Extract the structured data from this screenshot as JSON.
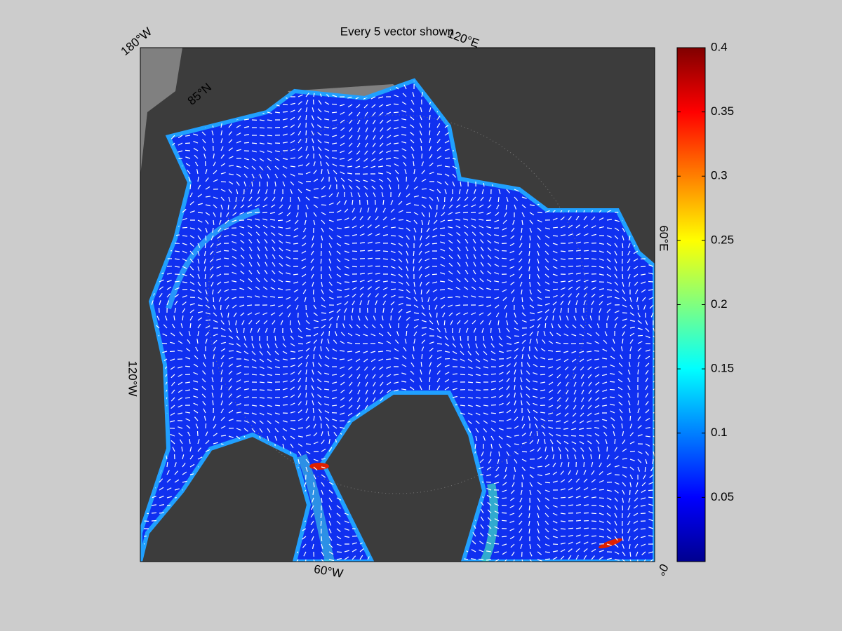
{
  "title": "Every 5 vector shown",
  "map_labels": {
    "lon_180w": "180°W",
    "lon_120e": "120°E",
    "lon_60e": "60°E",
    "lon_0": "0°",
    "lon_60w": "60°W",
    "lon_120w": "120°W",
    "lat_85n": "85°N"
  },
  "colorbar": {
    "colormap": "jet",
    "lim": [
      0,
      0.4
    ],
    "ticks": [
      0.05,
      0.1,
      0.15,
      0.2,
      0.25,
      0.3,
      0.35,
      0.4
    ]
  }
}
